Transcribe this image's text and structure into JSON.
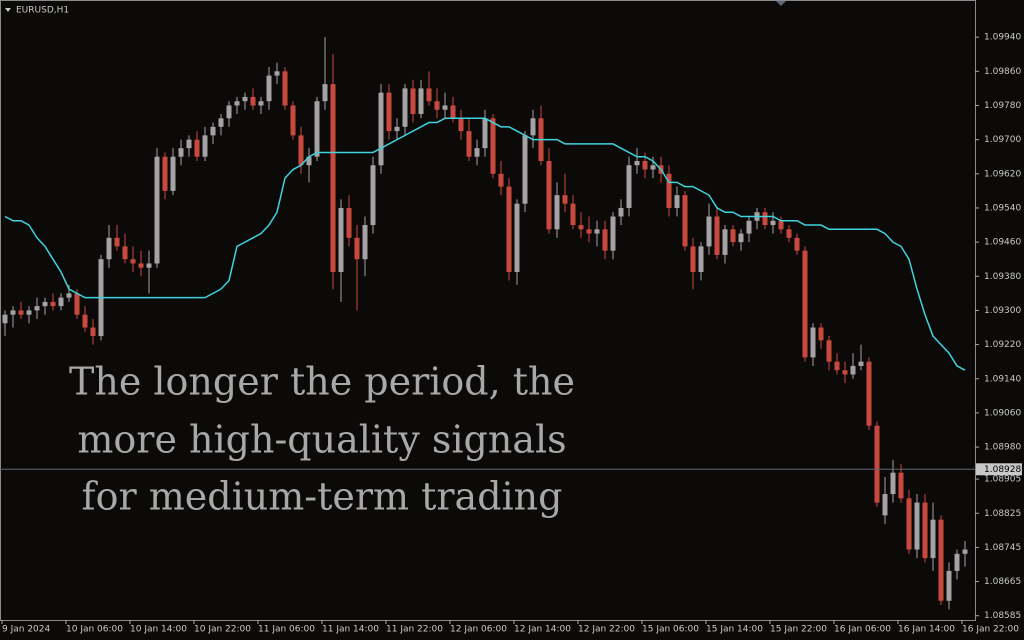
{
  "chart_data": {
    "type": "candlestick",
    "symbol": "EURUSD,H1",
    "annotation": [
      "The longer the period, the",
      "more high-quality signals",
      "for medium-term trading"
    ],
    "categories": [
      "9 Jan 2024",
      null,
      null,
      null,
      null,
      null,
      null,
      null,
      "10 Jan 06:00",
      null,
      null,
      null,
      null,
      null,
      null,
      null,
      "10 Jan 14:00",
      null,
      null,
      null,
      null,
      null,
      null,
      null,
      "10 Jan 22:00",
      null,
      null,
      null,
      null,
      null,
      null,
      null,
      "11 Jan 06:00",
      null,
      null,
      null,
      null,
      null,
      null,
      null,
      "11 Jan 14:00",
      null,
      null,
      null,
      null,
      null,
      null,
      null,
      "11 Jan 22:00",
      null,
      null,
      null,
      null,
      null,
      null,
      null,
      "12 Jan 06:00",
      null,
      null,
      null,
      null,
      null,
      null,
      null,
      "12 Jan 14:00",
      null,
      null,
      null,
      null,
      null,
      null,
      null,
      "12 Jan 22:00",
      null,
      null,
      null,
      null,
      null,
      null,
      null,
      "15 Jan 06:00",
      null,
      null,
      null,
      null,
      null,
      null,
      null,
      "15 Jan 14:00",
      null,
      null,
      null,
      null,
      null,
      null,
      null,
      "15 Jan 22:00",
      null,
      null,
      null,
      null,
      null,
      null,
      null,
      "16 Jan 06:00",
      null,
      null,
      null,
      null,
      null,
      null,
      null,
      "16 Jan 14:00",
      null,
      null,
      null,
      null,
      null,
      null,
      null,
      "16 Jan 22:00"
    ],
    "open": [
      1.0927,
      1.0929,
      1.093,
      1.0929,
      1.093,
      1.0931,
      1.0932,
      1.0931,
      1.0933,
      1.0934,
      1.0929,
      1.0926,
      1.0924,
      1.0942,
      1.0947,
      1.0945,
      1.0942,
      1.0941,
      1.094,
      1.0941,
      1.0966,
      1.0958,
      1.0966,
      1.0968,
      1.097,
      1.0966,
      1.0971,
      1.0973,
      1.0975,
      1.0978,
      1.0979,
      1.098,
      1.0978,
      1.0979,
      1.0985,
      1.0986,
      1.0978,
      1.0971,
      1.0964,
      1.0966,
      1.0979,
      1.0983,
      1.0939,
      1.0954,
      1.0947,
      1.0942,
      1.095,
      1.0964,
      1.0981,
      1.0972,
      1.0973,
      1.0982,
      1.0976,
      1.0982,
      1.0979,
      1.0977,
      1.0978,
      1.0975,
      1.0972,
      1.0966,
      1.0968,
      1.0975,
      1.0962,
      1.0959,
      1.0939,
      1.0955,
      1.0971,
      1.0975,
      1.0965,
      1.0949,
      1.0957,
      1.0955,
      1.095,
      1.0949,
      1.0948,
      1.0949,
      1.0944,
      1.0952,
      1.0954,
      1.0964,
      1.0965,
      1.0963,
      1.0964,
      1.0962,
      1.0954,
      1.0957,
      1.0945,
      1.0939,
      1.0945,
      1.0952,
      1.0943,
      1.0949,
      1.0946,
      1.0948,
      1.0951,
      1.0953,
      1.095,
      1.0951,
      1.0949,
      1.0947,
      1.0944,
      1.0919,
      1.0926,
      1.0923,
      1.0918,
      1.0916,
      1.0915,
      1.0917,
      1.0918,
      1.0903,
      1.0882,
      1.0887,
      1.0892,
      1.0886,
      1.0874,
      1.0885,
      1.0872,
      1.0881,
      1.0862,
      1.0869,
      1.0873
    ],
    "high": [
      1.093,
      1.0931,
      1.0932,
      1.0931,
      1.0933,
      1.0933,
      1.0934,
      1.0934,
      1.0936,
      1.0935,
      1.0931,
      1.0928,
      1.0943,
      1.095,
      1.095,
      1.0948,
      1.0945,
      1.0944,
      1.0944,
      1.0968,
      1.0967,
      1.0968,
      1.097,
      1.0971,
      1.0972,
      1.0973,
      1.0974,
      1.0976,
      1.0979,
      1.098,
      1.0981,
      1.0982,
      1.098,
      1.0987,
      1.0988,
      1.0987,
      1.0979,
      1.0973,
      1.0968,
      1.098,
      1.0994,
      1.099,
      1.0956,
      1.0957,
      1.095,
      1.0952,
      1.0966,
      1.0983,
      1.0983,
      1.0975,
      1.0983,
      1.0984,
      1.0984,
      1.0986,
      1.0982,
      1.0981,
      1.098,
      1.0977,
      1.0975,
      1.097,
      1.0977,
      1.0976,
      1.0965,
      1.0961,
      1.0956,
      1.0972,
      1.0977,
      1.0978,
      1.0968,
      1.096,
      1.0962,
      1.0957,
      1.0953,
      1.0952,
      1.0951,
      1.0951,
      1.0953,
      1.0956,
      1.0966,
      1.0968,
      1.0967,
      1.0966,
      1.0966,
      1.0964,
      1.0959,
      1.0958,
      1.0947,
      1.0946,
      1.0955,
      1.0954,
      1.095,
      1.095,
      1.0949,
      1.0952,
      1.0954,
      1.0954,
      1.0953,
      1.0952,
      1.095,
      1.0948,
      1.0945,
      1.0927,
      1.0927,
      1.0924,
      1.092,
      1.0918,
      1.092,
      1.0922,
      1.0919,
      1.0904,
      1.0891,
      1.0895,
      1.0894,
      1.0888,
      1.0887,
      1.0887,
      1.0885,
      1.0882,
      1.0871,
      1.0874,
      1.0876
    ],
    "low": [
      1.0924,
      1.0926,
      1.0928,
      1.0927,
      1.0928,
      1.0929,
      1.093,
      1.093,
      1.0932,
      1.0928,
      1.0925,
      1.0922,
      1.0923,
      1.094,
      1.0944,
      1.0941,
      1.0939,
      1.0938,
      1.0934,
      1.094,
      1.0956,
      1.0957,
      1.0964,
      1.0966,
      1.0965,
      1.0965,
      1.0969,
      1.0971,
      1.0973,
      1.0976,
      1.0977,
      1.0977,
      1.0976,
      1.0977,
      1.0983,
      1.0977,
      1.097,
      1.0962,
      1.096,
      1.0965,
      1.0977,
      1.0935,
      1.0932,
      1.0945,
      1.093,
      1.0938,
      1.0948,
      1.0962,
      1.097,
      1.097,
      1.0971,
      1.0974,
      1.0975,
      1.0978,
      1.0975,
      1.0975,
      1.0974,
      1.097,
      1.0965,
      1.0964,
      1.0966,
      1.0961,
      1.0957,
      1.0937,
      1.0936,
      1.0953,
      1.0968,
      1.0964,
      1.0948,
      1.0947,
      1.0953,
      1.0949,
      1.0947,
      1.0946,
      1.0945,
      1.0942,
      1.0942,
      1.095,
      1.0952,
      1.0962,
      1.0961,
      1.0961,
      1.096,
      1.0952,
      1.0952,
      1.0944,
      1.0935,
      1.0937,
      1.0943,
      1.0942,
      1.0941,
      1.0945,
      1.0944,
      1.0946,
      1.0949,
      1.0949,
      1.0948,
      1.0948,
      1.0946,
      1.0943,
      1.0918,
      1.0917,
      1.0921,
      1.0916,
      1.0915,
      1.0913,
      1.0914,
      1.0916,
      1.0902,
      1.0884,
      1.088,
      1.0885,
      1.0885,
      1.0873,
      1.0872,
      1.0871,
      1.0869,
      1.0861,
      1.086,
      1.0867,
      1.087
    ],
    "close": [
      1.0929,
      1.093,
      1.0929,
      1.093,
      1.0931,
      1.0932,
      1.0931,
      1.0933,
      1.0934,
      1.0929,
      1.0926,
      1.0924,
      1.0942,
      1.0947,
      1.0945,
      1.0942,
      1.0941,
      1.094,
      1.0941,
      1.0966,
      1.0958,
      1.0966,
      1.0968,
      1.097,
      1.0966,
      1.0971,
      1.0973,
      1.0975,
      1.0978,
      1.0979,
      1.098,
      1.0978,
      1.0979,
      1.0985,
      1.0986,
      1.0978,
      1.0971,
      1.0964,
      1.0966,
      1.0979,
      1.0983,
      1.0939,
      1.0954,
      1.0947,
      1.0942,
      1.095,
      1.0964,
      1.0981,
      1.0972,
      1.0973,
      1.0982,
      1.0976,
      1.0982,
      1.0979,
      1.0977,
      1.0978,
      1.0975,
      1.0972,
      1.0966,
      1.0968,
      1.0975,
      1.0962,
      1.0959,
      1.0939,
      1.0955,
      1.0971,
      1.0975,
      1.0965,
      1.0949,
      1.0957,
      1.0955,
      1.095,
      1.0949,
      1.0948,
      1.0949,
      1.0944,
      1.0952,
      1.0954,
      1.0964,
      1.0965,
      1.0963,
      1.0964,
      1.0962,
      1.0954,
      1.0957,
      1.0945,
      1.0939,
      1.0945,
      1.0952,
      1.0943,
      1.0949,
      1.0946,
      1.0948,
      1.0951,
      1.0953,
      1.095,
      1.0951,
      1.0949,
      1.0947,
      1.0944,
      1.0919,
      1.0926,
      1.0923,
      1.0918,
      1.0916,
      1.0915,
      1.0917,
      1.0918,
      1.0903,
      1.0885,
      1.0887,
      1.0892,
      1.0886,
      1.0874,
      1.0885,
      1.0872,
      1.0881,
      1.0862,
      1.0869,
      1.0873,
      1.0874
    ],
    "overlay": {
      "color": "#3fd3df",
      "values": [
        1.0952,
        1.0951,
        1.0951,
        1.095,
        1.0947,
        1.0945,
        1.0942,
        1.0939,
        1.0935,
        1.0934,
        1.0933,
        1.0933,
        1.0933,
        1.0933,
        1.0933,
        1.0933,
        1.0933,
        1.0933,
        1.0933,
        1.0933,
        1.0933,
        1.0933,
        1.0933,
        1.0933,
        1.0933,
        1.0933,
        1.0934,
        1.0935,
        1.0937,
        1.0945,
        1.0946,
        1.0947,
        1.0948,
        1.095,
        1.0953,
        1.0961,
        1.0963,
        1.0964,
        1.0966,
        1.0967,
        1.0967,
        1.0967,
        1.0967,
        1.0967,
        1.0967,
        1.0967,
        1.0967,
        1.0968,
        1.0969,
        1.097,
        1.0971,
        1.0972,
        1.0973,
        1.0974,
        1.0974,
        1.0975,
        1.0975,
        1.0975,
        1.0975,
        1.0975,
        1.0975,
        1.0974,
        1.0973,
        1.0973,
        1.0972,
        1.0971,
        1.097,
        1.097,
        1.097,
        1.097,
        1.0969,
        1.0969,
        1.0969,
        1.0969,
        1.0969,
        1.0969,
        1.0969,
        1.0968,
        1.0967,
        1.0966,
        1.0966,
        1.0965,
        1.0963,
        1.096,
        1.096,
        1.0959,
        1.0959,
        1.0958,
        1.0957,
        1.0954,
        1.0953,
        1.0953,
        1.0952,
        1.0952,
        1.0952,
        1.0952,
        1.0952,
        1.0951,
        1.0951,
        1.0951,
        1.095,
        1.095,
        1.095,
        1.0949,
        1.0949,
        1.0949,
        1.0949,
        1.0949,
        1.0949,
        1.0949,
        1.0948,
        1.0946,
        1.0945,
        1.0942,
        1.0935,
        1.0929,
        1.0924,
        1.0922,
        1.092,
        1.0917,
        1.0916
      ]
    },
    "up_color": "#a3a3a3",
    "down_color": "#c8493e",
    "current_price": 1.08928,
    "ylim": [
      1.08575,
      1.1002
    ],
    "yticks": [
      {
        "value": 1.0994,
        "label": "1.09940"
      },
      {
        "value": 1.0986,
        "label": "1.09860"
      },
      {
        "value": 1.0978,
        "label": "1.09780"
      },
      {
        "value": 1.097,
        "label": "1.09700"
      },
      {
        "value": 1.0962,
        "label": "1.09620"
      },
      {
        "value": 1.0954,
        "label": "1.09540"
      },
      {
        "value": 1.0946,
        "label": "1.09460"
      },
      {
        "value": 1.0938,
        "label": "1.09380"
      },
      {
        "value": 1.093,
        "label": "1.09300"
      },
      {
        "value": 1.0922,
        "label": "1.09220"
      },
      {
        "value": 1.0914,
        "label": "1.09140"
      },
      {
        "value": 1.0906,
        "label": "1.09060"
      },
      {
        "value": 1.0898,
        "label": "1.08980"
      },
      1.08905,
      1.08825,
      1.08745,
      1.08665,
      1.08585
    ],
    "grid": false
  }
}
